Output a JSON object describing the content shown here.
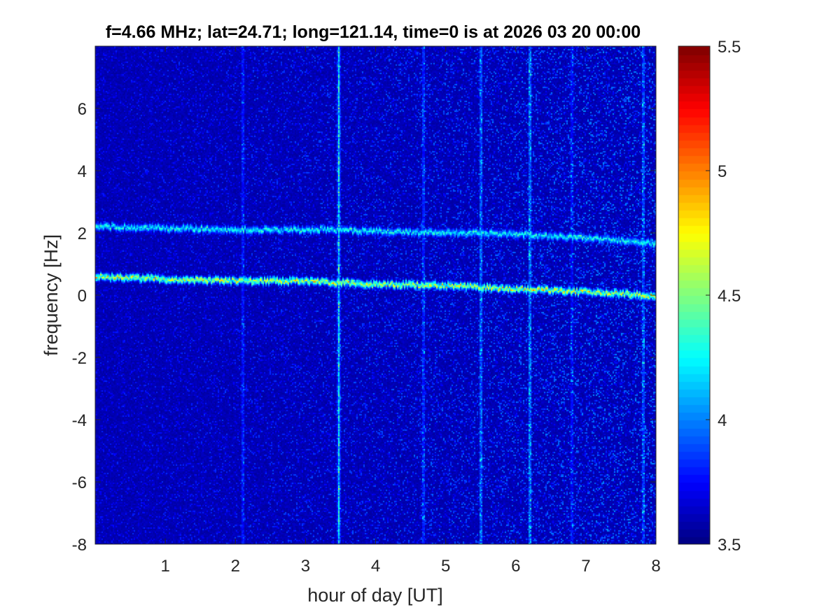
{
  "chart_data": {
    "type": "heatmap",
    "title": "f=4.66 MHz;  lat=24.71; long=121.14, time=0 is at 2026 03 20 00:00",
    "xlabel": "hour of day [UT]",
    "ylabel": "frequency [Hz]",
    "xlim": [
      0,
      8
    ],
    "ylim": [
      -8,
      8
    ],
    "x_ticks": [
      1,
      2,
      3,
      4,
      5,
      6,
      7,
      8
    ],
    "y_ticks": [
      -8,
      -6,
      -4,
      -2,
      0,
      2,
      4,
      6
    ],
    "x_tick_labels": [
      "1",
      "2",
      "3",
      "4",
      "5",
      "6",
      "7",
      "8"
    ],
    "y_tick_labels": [
      "-8",
      "-6",
      "-4",
      "-2",
      "0",
      "2",
      "4",
      "6"
    ],
    "colorbar": {
      "colormap": "jet",
      "clim": [
        3.5,
        5.5
      ],
      "ticks": [
        3.5,
        4,
        4.5,
        5,
        5.5
      ],
      "tick_labels": [
        "3.5",
        "4",
        "4.5",
        "5",
        "5.5"
      ]
    },
    "background_level": 3.6,
    "traces": [
      {
        "x": [
          0,
          1,
          2,
          3,
          3.5,
          4,
          5,
          6,
          7,
          7.5,
          8
        ],
        "y": [
          0.6,
          0.5,
          0.45,
          0.45,
          0.4,
          0.35,
          0.3,
          0.2,
          0.1,
          0.05,
          -0.05
        ],
        "level": 4.7
      },
      {
        "x": [
          0,
          1,
          2,
          3,
          3.5,
          4,
          5,
          6,
          7,
          7.5,
          8
        ],
        "y": [
          2.2,
          2.15,
          2.1,
          2.1,
          2.1,
          2.05,
          2.0,
          1.95,
          1.85,
          1.75,
          1.65
        ],
        "level": 4.3
      }
    ],
    "vertical_streaks": [
      {
        "x": 2.1,
        "level": 3.9
      },
      {
        "x": 3.47,
        "level": 4.3
      },
      {
        "x": 4.68,
        "level": 3.95
      },
      {
        "x": 5.5,
        "level": 4.1
      },
      {
        "x": 6.2,
        "level": 4.15
      },
      {
        "x": 6.8,
        "level": 3.85
      },
      {
        "x": 7.82,
        "level": 4.05
      }
    ],
    "colors": {
      "axis": "#262626",
      "frame": "#262626"
    }
  }
}
